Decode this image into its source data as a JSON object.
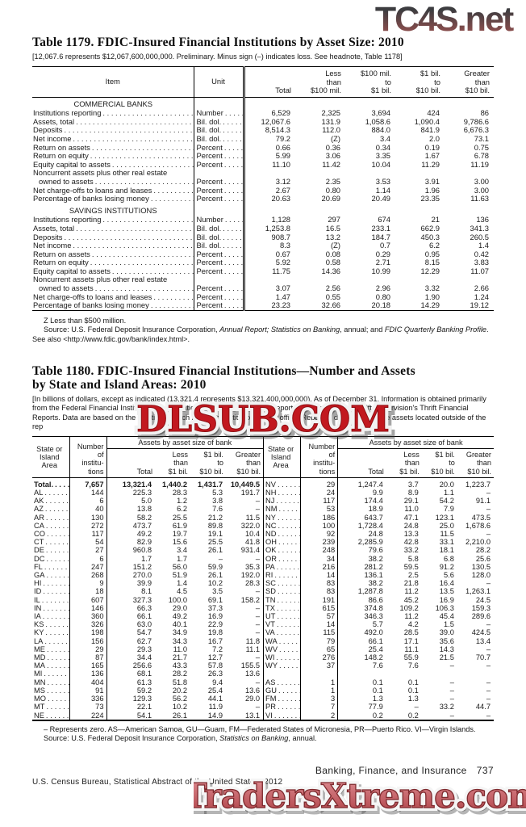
{
  "watermarks": {
    "top": "TC4S.net",
    "middle": "DLSUB.COM",
    "bottom": "TradersXtreme.com"
  },
  "table1179": {
    "title": "Table 1179. FDIC-Insured Financial Institutions by Asset Size: 2010",
    "headnote": "[12,067.6 represents $12,067,600,000,000. Preliminary. Minus sign (–) indicates loss. See headnote, Table 1178]",
    "header": {
      "item": "Item",
      "unit": "Unit",
      "cols": [
        "Total",
        "Less\nthan\n$100 mil.",
        "$100 mil.\nto\n$1 bil.",
        "$1 bil.\nto\n$10 bil.",
        "Greater\nthan\n$10 bil."
      ]
    },
    "sections": [
      {
        "name": "COMMERCIAL BANKS",
        "rows": [
          {
            "item": "Institutions reporting",
            "unit": "Number",
            "values": [
              "6,529",
              "2,325",
              "3,694",
              "424",
              "86"
            ]
          },
          {
            "item": "Assets, total",
            "unit": "Bil. dol.",
            "values": [
              "12,067.6",
              "131.9",
              "1,058.6",
              "1,090.4",
              "9,786.6"
            ]
          },
          {
            "item": "Deposits",
            "unit": "Bil. dol.",
            "values": [
              "8,514.3",
              "112.0",
              "884.0",
              "841.9",
              "6,676.3"
            ]
          },
          {
            "item": "Net income",
            "unit": "Bil. dol.",
            "values": [
              "79.2",
              "(Z)",
              "3.4",
              "2.0",
              "73.1"
            ]
          },
          {
            "item": "Return on assets",
            "unit": "Percent",
            "values": [
              "0.66",
              "0.36",
              "0.34",
              "0.19",
              "0.75"
            ]
          },
          {
            "item": "Return on equity",
            "unit": "Percent",
            "values": [
              "5.99",
              "3.06",
              "3.35",
              "1.67",
              "6.78"
            ]
          },
          {
            "item": "Equity capital to assets",
            "unit": "Percent",
            "values": [
              "11.10",
              "11.42",
              "10.04",
              "11.29",
              "11.19"
            ]
          },
          {
            "pre": "Noncurrent assets plus other real estate",
            "indent": true,
            "item": "owned to assets",
            "unit": "Percent",
            "values": [
              "3.12",
              "2.35",
              "3.53",
              "3.91",
              "3.00"
            ]
          },
          {
            "item": "Net charge-offs to loans and leases",
            "unit": "Percent",
            "values": [
              "2.67",
              "0.80",
              "1.14",
              "1.96",
              "3.00"
            ]
          },
          {
            "item": "Percentage of banks losing money",
            "unit": "Percent",
            "values": [
              "20.63",
              "20.69",
              "20.49",
              "23.35",
              "11.63"
            ]
          }
        ]
      },
      {
        "name": "SAVINGS INSTITUTIONS",
        "rows": [
          {
            "item": "Institutions reporting",
            "unit": "Number",
            "values": [
              "1,128",
              "297",
              "674",
              "21",
              "136"
            ]
          },
          {
            "item": "Assets, total",
            "unit": "Bil. dol.",
            "values": [
              "1,253.8",
              "16.5",
              "233.1",
              "662.9",
              "341.3"
            ]
          },
          {
            "item": "Deposits",
            "unit": "Bil. dol.",
            "values": [
              "908.7",
              "13.2",
              "184.7",
              "450.3",
              "260.5"
            ]
          },
          {
            "item": "Net income",
            "unit": "Bil. dol.",
            "values": [
              "8.3",
              "(Z)",
              "0.7",
              "6.2",
              "1.4"
            ]
          },
          {
            "item": "Return on assets",
            "unit": "Percent",
            "values": [
              "0.67",
              "0.08",
              "0.29",
              "0.95",
              "0.42"
            ]
          },
          {
            "item": "Return on equity",
            "unit": "Percent",
            "values": [
              "5.92",
              "0.58",
              "2.71",
              "8.15",
              "3.83"
            ]
          },
          {
            "item": "Equity capital to assets",
            "unit": "Percent",
            "values": [
              "11.75",
              "14.36",
              "10.99",
              "12.29",
              "11.07"
            ]
          },
          {
            "pre": "Noncurrent assets plus other real estate",
            "indent": true,
            "item": "owned to assets",
            "unit": "Percent",
            "values": [
              "3.07",
              "2.56",
              "2.96",
              "3.32",
              "2.66"
            ]
          },
          {
            "item": "Net charge-offs to loans and leases",
            "unit": "Percent",
            "values": [
              "1.47",
              "0.55",
              "0.80",
              "1.90",
              "1.24"
            ]
          },
          {
            "item": "Percentage of banks losing money",
            "unit": "Percent",
            "values": [
              "23.23",
              "32.66",
              "20.18",
              "14.29",
              "19.12"
            ]
          }
        ]
      }
    ],
    "footnote_z": "Z Less than $500 million.",
    "source_parts": [
      {
        "text": "Source: U.S. Federal Deposit Insurance Corporation, "
      },
      {
        "text": "Annual Report; Statistics on Banking",
        "italic": true
      },
      {
        "text": ", annual; and "
      },
      {
        "text": "FDIC Quarterly Banking Profile",
        "italic": true
      },
      {
        "text": ". See also <http://www.fdic.gov/bank/index.html>."
      }
    ]
  },
  "table1180": {
    "title": "Table 1180. FDIC-Insured Financial Institutions—Number and Assets\nby State and Island Areas: 2010",
    "headnote": "[In billions of dollars, except as indicated (13,321.4 represents $13,321,400,000,000). As of December 31. Information is obtained primarily from the Federal Financial Institutions Examination Council (FFIEC) Call Reports and the Office of Thrift Supervision's Thrift Financial Reports. Data are based on the location of each reporting institution's main office. Reported data may include assets located outside of the rep",
    "header": {
      "area": "State or\nIsland\nArea",
      "institutions": "Number\nof\ninstitu-\ntions",
      "assets": "Assets by asset size of bank",
      "cols": [
        "Total",
        "Less\nthan\n$1 bil.",
        "$1 bil.\nto\n$10 bil.",
        "Greater\nthan\n$10 bil."
      ]
    },
    "rows": [
      {
        "left_bold": true,
        "left": [
          "Total.",
          "7,657",
          "13,321.4",
          "1,440.2",
          "1,431.7",
          "10,449.5"
        ],
        "right": [
          "NV",
          "29",
          "1,247.4",
          "3.7",
          "20.0",
          "1,223.7"
        ]
      },
      {
        "left": [
          "AL",
          "144",
          "225.3",
          "28.3",
          "5.3",
          "191.7"
        ],
        "right": [
          "NH",
          "24",
          "9.9",
          "8.9",
          "1.1",
          "–"
        ]
      },
      {
        "left": [
          "AK",
          "6",
          "5.0",
          "1.2",
          "3.8",
          "–"
        ],
        "right": [
          "NJ",
          "117",
          "174.4",
          "29.1",
          "54.2",
          "91.1"
        ]
      },
      {
        "left": [
          "AZ",
          "40",
          "13.8",
          "6.2",
          "7.6",
          "–"
        ],
        "right": [
          "NM",
          "53",
          "18.9",
          "11.0",
          "7.9",
          "–"
        ]
      },
      {
        "left": [
          "AR",
          "130",
          "58.2",
          "25.5",
          "21.2",
          "11.5"
        ],
        "right": [
          "NY",
          "186",
          "643.7",
          "47.1",
          "123.1",
          "473.5"
        ]
      },
      {
        "left": [
          "CA",
          "272",
          "473.7",
          "61.9",
          "89.8",
          "322.0"
        ],
        "right": [
          "NC",
          "100",
          "1,728.4",
          "24.8",
          "25.0",
          "1,678.6"
        ]
      },
      {
        "left": [
          "CO",
          "117",
          "49.2",
          "19.7",
          "19.1",
          "10.4"
        ],
        "right": [
          "ND",
          "92",
          "24.8",
          "13.3",
          "11.5",
          "–"
        ]
      },
      {
        "left": [
          "CT",
          "54",
          "82.9",
          "15.6",
          "25.5",
          "41.8"
        ],
        "right": [
          "OH",
          "239",
          "2,285.9",
          "42.8",
          "33.1",
          "2,210.0"
        ]
      },
      {
        "left": [
          "DE",
          "27",
          "960.8",
          "3.4",
          "26.1",
          "931.4"
        ],
        "right": [
          "OK",
          "248",
          "79.6",
          "33.2",
          "18.1",
          "28.2"
        ]
      },
      {
        "left": [
          "DC",
          "6",
          "1.7",
          "1.7",
          "–",
          "–"
        ],
        "right": [
          "OR",
          "34",
          "38.2",
          "5.8",
          "6.8",
          "25.6"
        ]
      },
      {
        "left": [
          "FL",
          "247",
          "151.2",
          "56.0",
          "59.9",
          "35.3"
        ],
        "right": [
          "PA",
          "216",
          "281.2",
          "59.5",
          "91.2",
          "130.5"
        ]
      },
      {
        "left": [
          "GA",
          "268",
          "270.0",
          "51.9",
          "26.1",
          "192.0"
        ],
        "right": [
          "RI",
          "14",
          "136.1",
          "2.5",
          "5.6",
          "128.0"
        ]
      },
      {
        "left": [
          "HI",
          "9",
          "39.9",
          "1.4",
          "10.2",
          "28.3"
        ],
        "right": [
          "SC",
          "83",
          "38.2",
          "21.8",
          "16.4",
          "–"
        ]
      },
      {
        "left": [
          "ID",
          "18",
          "8.1",
          "4.5",
          "3.5",
          "–"
        ],
        "right": [
          "SD",
          "83",
          "1,287.8",
          "11.2",
          "13.5",
          "1,263.1"
        ]
      },
      {
        "left": [
          "IL",
          "607",
          "327.3",
          "100.0",
          "69.1",
          "158.2"
        ],
        "right": [
          "TN",
          "191",
          "86.6",
          "45.2",
          "16.9",
          "24.5"
        ]
      },
      {
        "left": [
          "IN",
          "146",
          "66.3",
          "29.0",
          "37.3",
          "–"
        ],
        "right": [
          "TX",
          "615",
          "374.8",
          "109.2",
          "106.3",
          "159.3"
        ]
      },
      {
        "left": [
          "IA",
          "360",
          "66.1",
          "49.2",
          "16.9",
          "–"
        ],
        "right": [
          "UT",
          "57",
          "346.3",
          "11.2",
          "45.4",
          "289.6"
        ]
      },
      {
        "left": [
          "KS",
          "326",
          "63.0",
          "40.1",
          "22.9",
          "–"
        ],
        "right": [
          "VT",
          "14",
          "5.7",
          "4.2",
          "1.5",
          "–"
        ]
      },
      {
        "left": [
          "KY",
          "198",
          "54.7",
          "34.9",
          "19.8",
          "–"
        ],
        "right": [
          "VA",
          "115",
          "492.0",
          "28.5",
          "39.0",
          "424.5"
        ]
      },
      {
        "left": [
          "LA",
          "156",
          "62.7",
          "34.3",
          "16.7",
          "11.8"
        ],
        "right": [
          "WA",
          "79",
          "66.1",
          "17.1",
          "35.6",
          "13.4"
        ]
      },
      {
        "left": [
          "ME",
          "29",
          "29.3",
          "11.0",
          "7.2",
          "11.1"
        ],
        "right": [
          "WV",
          "65",
          "25.4",
          "11.1",
          "14.3",
          "–"
        ]
      },
      {
        "left": [
          "MD",
          "87",
          "34.4",
          "21.7",
          "12.7",
          "–"
        ],
        "right": [
          "WI",
          "276",
          "148.2",
          "55.9",
          "21.5",
          "70.7"
        ]
      },
      {
        "left": [
          "MA",
          "165",
          "256.6",
          "43.3",
          "57.8",
          "155.5"
        ],
        "right": [
          "WY",
          "37",
          "7.6",
          "7.6",
          "–",
          "–"
        ]
      },
      {
        "left": [
          "MI",
          "136",
          "68.1",
          "28.2",
          "26.3",
          "13.6"
        ],
        "right": null
      },
      {
        "left": [
          "MN",
          "404",
          "61.3",
          "51.8",
          "9.4",
          "–"
        ],
        "right": [
          "AS",
          "1",
          "0.1",
          "0.1",
          "–",
          "–"
        ]
      },
      {
        "left": [
          "MS",
          "91",
          "59.2",
          "20.2",
          "25.4",
          "13.6"
        ],
        "right": [
          "GU",
          "1",
          "0.1",
          "0.1",
          "–",
          "–"
        ]
      },
      {
        "left": [
          "MO",
          "336",
          "129.3",
          "56.2",
          "44.1",
          "29.0"
        ],
        "right": [
          "FM",
          "3",
          "1.3",
          "1.3",
          "–",
          "–"
        ]
      },
      {
        "left": [
          "MT",
          "73",
          "22.1",
          "10.2",
          "11.9",
          "–"
        ],
        "right": [
          "PR",
          "7",
          "77.9",
          "–",
          "33.2",
          "44.7"
        ]
      },
      {
        "left": [
          "NE",
          "224",
          "54.1",
          "26.1",
          "14.9",
          "13.1"
        ],
        "right": [
          "VI",
          "2",
          "0.2",
          "0.2",
          "–",
          "–"
        ]
      }
    ],
    "footnote_dash": "– Represents zero. AS—American Samoa, GU—Guam, FM—Federated States of Micronesia, PR—Puerto Rico. VI—Virgin Islands.",
    "source_parts": [
      {
        "text": "Source: U.S. Federal Deposit Insurance Corporation, "
      },
      {
        "text": "Statistics on Banking",
        "italic": true
      },
      {
        "text": ", annual."
      }
    ]
  },
  "footer": {
    "section_label": "Banking, Finance, and Insurance",
    "page_number": "737",
    "credit": "U.S. Census Bureau, Statistical Abstract of the United States: 2012"
  }
}
